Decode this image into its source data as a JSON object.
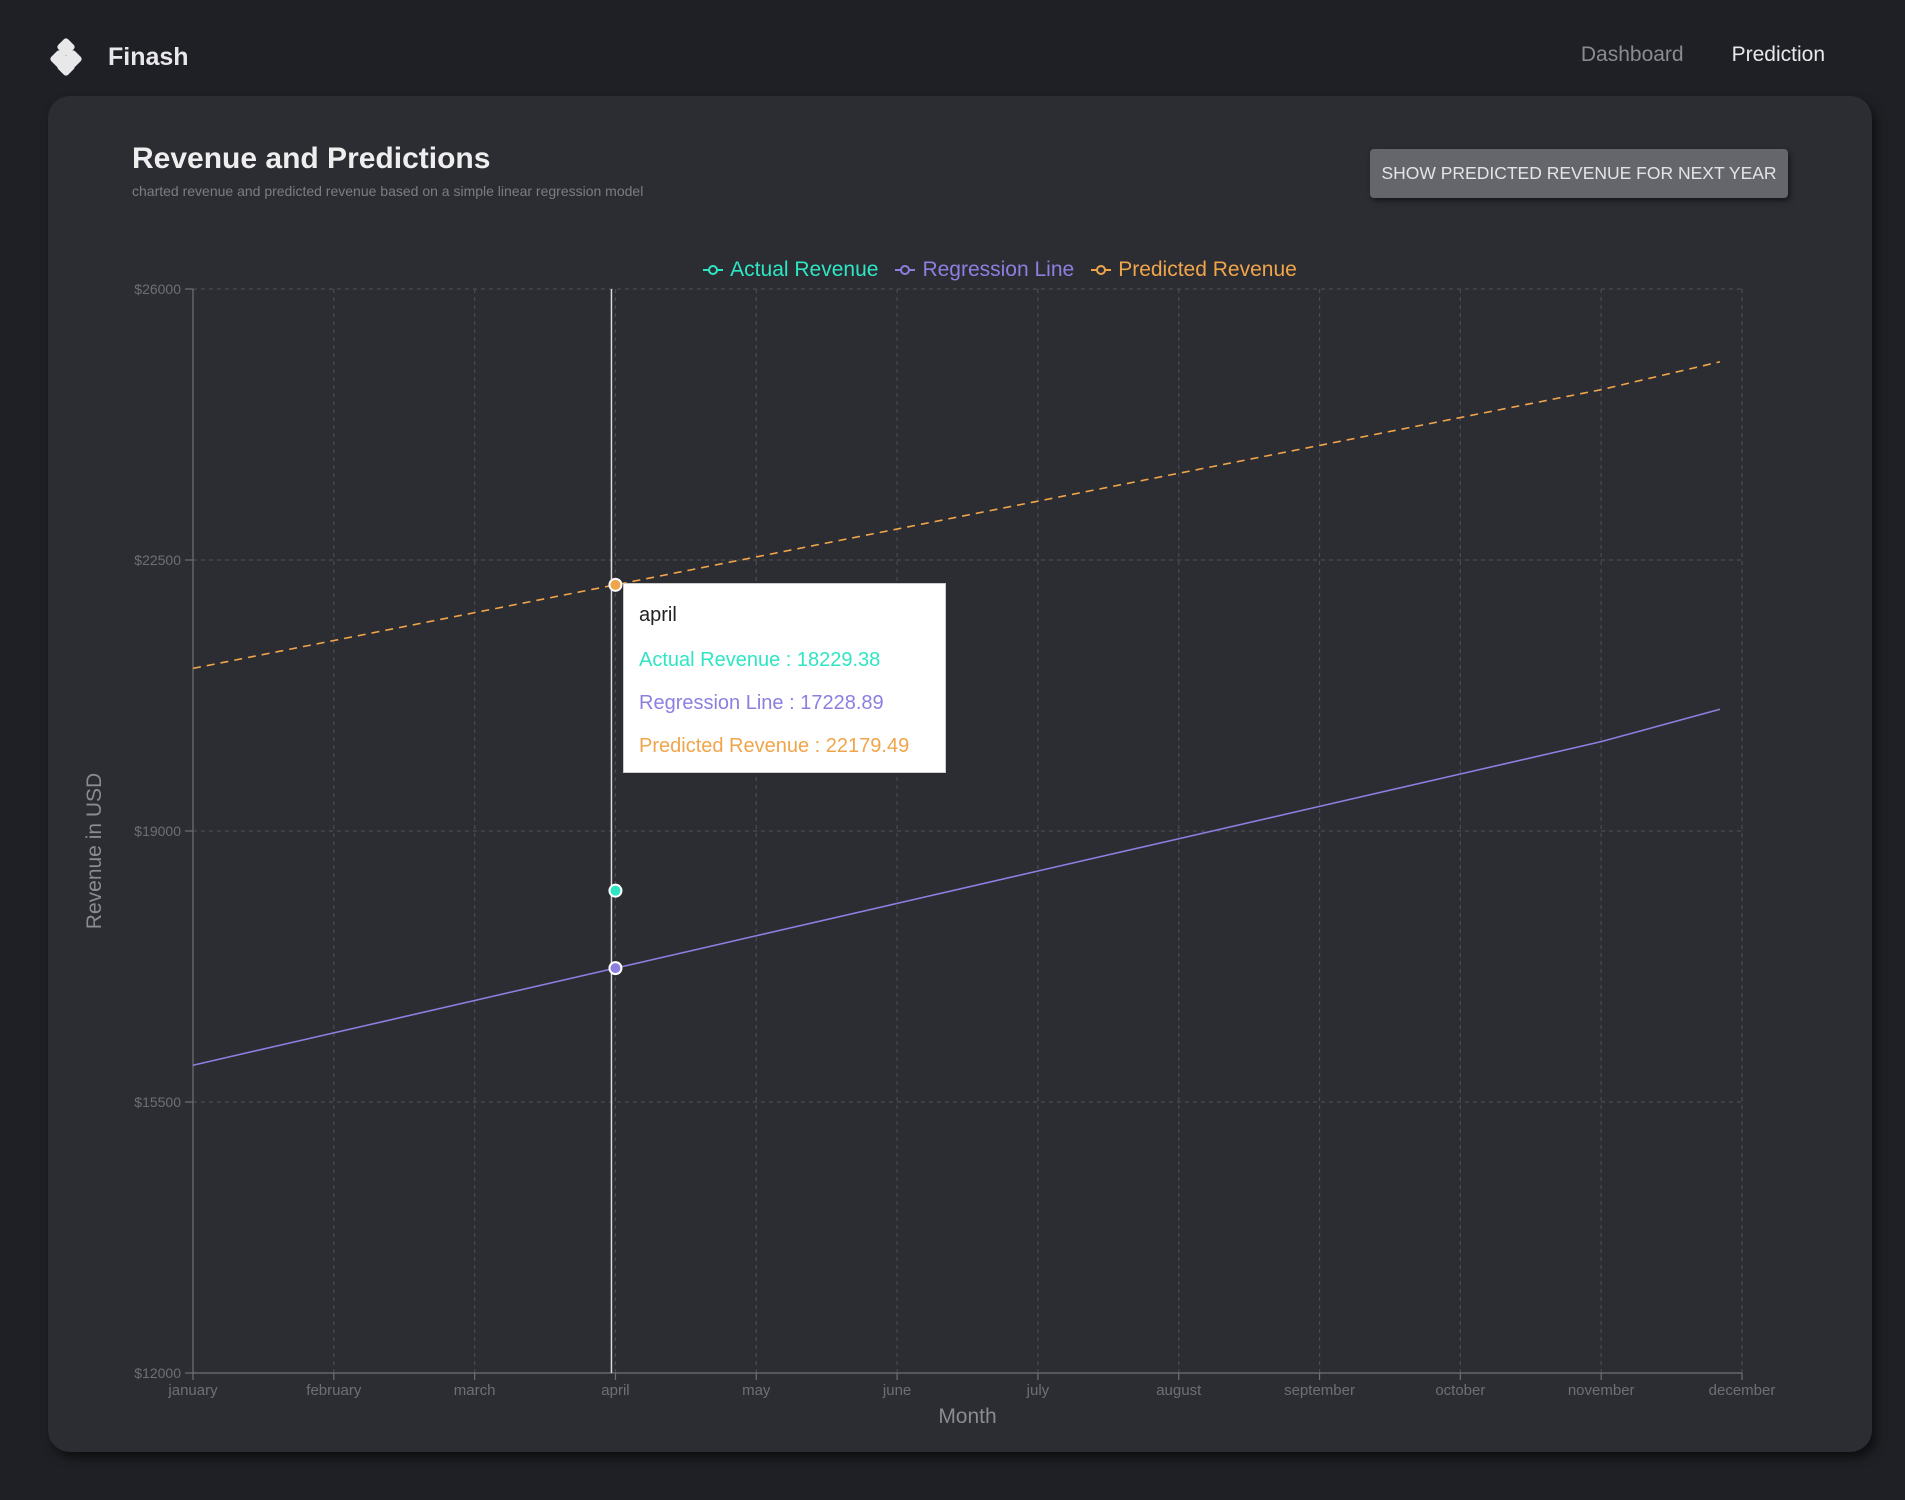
{
  "app": {
    "name": "Finash",
    "logo_icon": "diamond-logo-icon"
  },
  "nav": {
    "items": [
      {
        "label": "Dashboard",
        "active": false
      },
      {
        "label": "Prediction",
        "active": true
      }
    ]
  },
  "card": {
    "title": "Revenue and Predictions",
    "subtitle": "charted revenue and predicted revenue based on a simple linear regression model",
    "button_label": "SHOW PREDICTED REVENUE FOR NEXT YEAR"
  },
  "colors": {
    "background": "#1f2025",
    "card": "#2c2d33",
    "actual": "#2ee6c4",
    "regression": "#8b7fe0",
    "predicted": "#f0a54a",
    "grid": "#4a4b52"
  },
  "chart_data": {
    "type": "line",
    "xlabel": "Month",
    "ylabel": "Revenue in USD",
    "categories": [
      "january",
      "february",
      "march",
      "april",
      "may",
      "june",
      "july",
      "august",
      "september",
      "october",
      "november",
      "december"
    ],
    "yticks": [
      "$12000",
      "$15500",
      "$19000",
      "$22500",
      "$26000"
    ],
    "ylim": [
      12000,
      26000
    ],
    "grid": true,
    "legend_position": "top-center",
    "series": [
      {
        "name": "Actual Revenue",
        "color": "#2ee6c4",
        "style": "points",
        "values": [
          null,
          null,
          null,
          18229.38,
          null,
          null,
          null,
          null,
          null,
          null,
          null,
          null
        ]
      },
      {
        "name": "Regression Line",
        "color": "#8b7fe0",
        "style": "solid",
        "values": [
          15975,
          16393,
          16811,
          17228.89,
          17647,
          18065,
          18483,
          18900,
          19318,
          19736,
          20154,
          20572
        ]
      },
      {
        "name": "Predicted Revenue",
        "color": "#f0a54a",
        "style": "dashed",
        "values": [
          21100,
          21460,
          21820,
          22179.49,
          22540,
          22900,
          23260,
          23620,
          23980,
          24340,
          24700,
          25060
        ]
      }
    ],
    "hover": {
      "category": "april",
      "rows": [
        {
          "label": "Actual Revenue",
          "value": "18229.38",
          "color": "#2ee6c4"
        },
        {
          "label": "Regression Line",
          "value": "17228.89",
          "color": "#8b7fe0"
        },
        {
          "label": "Predicted Revenue",
          "value": "22179.49",
          "color": "#f0a54a"
        }
      ]
    }
  }
}
